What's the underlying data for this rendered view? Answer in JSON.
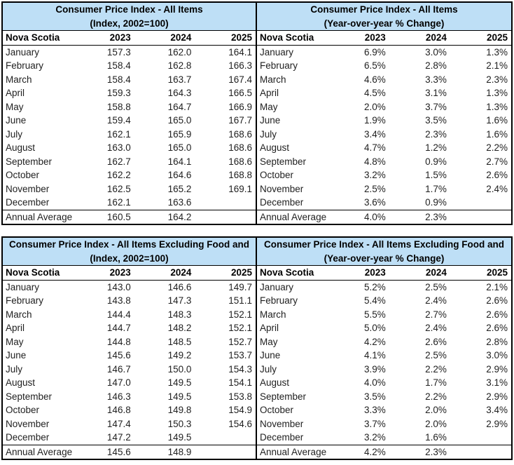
{
  "colors": {
    "title_bg": "#BEDFF6",
    "border": "#000000",
    "text": "#1f1f1f"
  },
  "row_header_label": "Nova Scotia",
  "year_columns": [
    "2023",
    "2024",
    "2025"
  ],
  "tables": [
    {
      "title_line1": "Consumer Price Index - All Items",
      "title_line2": "(Index, 2002=100)",
      "rows": [
        [
          "January",
          "157.3",
          "162.0",
          "164.1"
        ],
        [
          "February",
          "158.4",
          "162.8",
          "166.3"
        ],
        [
          "March",
          "158.4",
          "163.7",
          "167.4"
        ],
        [
          "April",
          "159.3",
          "164.3",
          "166.5"
        ],
        [
          "May",
          "158.8",
          "164.7",
          "166.9"
        ],
        [
          "June",
          "159.4",
          "165.0",
          "167.7"
        ],
        [
          "July",
          "162.1",
          "165.9",
          "168.6"
        ],
        [
          "August",
          "163.0",
          "165.0",
          "168.6"
        ],
        [
          "September",
          "162.7",
          "164.1",
          "168.6"
        ],
        [
          "October",
          "162.2",
          "164.6",
          "168.8"
        ],
        [
          "November",
          "162.5",
          "165.2",
          "169.1"
        ],
        [
          "December",
          "162.1",
          "163.6",
          ""
        ],
        [
          "Annual Average",
          "160.5",
          "164.2",
          ""
        ]
      ]
    },
    {
      "title_line1": "Consumer Price Index - All Items",
      "title_line2": "(Year-over-year % Change)",
      "rows": [
        [
          "January",
          "6.9%",
          "3.0%",
          "1.3%"
        ],
        [
          "February",
          "6.5%",
          "2.8%",
          "2.1%"
        ],
        [
          "March",
          "4.6%",
          "3.3%",
          "2.3%"
        ],
        [
          "April",
          "4.5%",
          "3.1%",
          "1.3%"
        ],
        [
          "May",
          "2.0%",
          "3.7%",
          "1.3%"
        ],
        [
          "June",
          "1.9%",
          "3.5%",
          "1.6%"
        ],
        [
          "July",
          "3.4%",
          "2.3%",
          "1.6%"
        ],
        [
          "August",
          "4.7%",
          "1.2%",
          "2.2%"
        ],
        [
          "September",
          "4.8%",
          "0.9%",
          "2.7%"
        ],
        [
          "October",
          "3.2%",
          "1.5%",
          "2.6%"
        ],
        [
          "November",
          "2.5%",
          "1.7%",
          "2.4%"
        ],
        [
          "December",
          "3.6%",
          "0.9%",
          ""
        ],
        [
          "Annual Average",
          "4.0%",
          "2.3%",
          ""
        ]
      ]
    },
    {
      "title_line1": "Consumer Price Index - All Items Excluding Food and",
      "title_line2": "(Index, 2002=100)",
      "rows": [
        [
          "January",
          "143.0",
          "146.6",
          "149.7"
        ],
        [
          "February",
          "143.8",
          "147.3",
          "151.1"
        ],
        [
          "March",
          "144.4",
          "148.3",
          "152.1"
        ],
        [
          "April",
          "144.7",
          "148.2",
          "152.1"
        ],
        [
          "May",
          "144.8",
          "148.5",
          "152.7"
        ],
        [
          "June",
          "145.6",
          "149.2",
          "153.7"
        ],
        [
          "July",
          "146.7",
          "150.0",
          "154.3"
        ],
        [
          "August",
          "147.0",
          "149.5",
          "154.1"
        ],
        [
          "September",
          "146.3",
          "149.5",
          "153.8"
        ],
        [
          "October",
          "146.8",
          "149.8",
          "154.9"
        ],
        [
          "November",
          "147.4",
          "150.3",
          "154.6"
        ],
        [
          "December",
          "147.2",
          "149.5",
          ""
        ],
        [
          "Annual Average",
          "145.6",
          "148.9",
          ""
        ]
      ]
    },
    {
      "title_line1": "Consumer Price Index - All Items Excluding Food and",
      "title_line2": "(Year-over-year % Change)",
      "rows": [
        [
          "January",
          "5.2%",
          "2.5%",
          "2.1%"
        ],
        [
          "February",
          "5.4%",
          "2.4%",
          "2.6%"
        ],
        [
          "March",
          "5.5%",
          "2.7%",
          "2.6%"
        ],
        [
          "April",
          "5.0%",
          "2.4%",
          "2.6%"
        ],
        [
          "May",
          "4.2%",
          "2.6%",
          "2.8%"
        ],
        [
          "June",
          "4.1%",
          "2.5%",
          "3.0%"
        ],
        [
          "July",
          "3.9%",
          "2.2%",
          "2.9%"
        ],
        [
          "August",
          "4.0%",
          "1.7%",
          "3.1%"
        ],
        [
          "September",
          "3.5%",
          "2.2%",
          "2.9%"
        ],
        [
          "October",
          "3.3%",
          "2.0%",
          "3.4%"
        ],
        [
          "November",
          "3.7%",
          "2.0%",
          "2.9%"
        ],
        [
          "December",
          "3.2%",
          "1.6%",
          ""
        ],
        [
          "Annual Average",
          "4.2%",
          "2.3%",
          ""
        ]
      ]
    }
  ]
}
